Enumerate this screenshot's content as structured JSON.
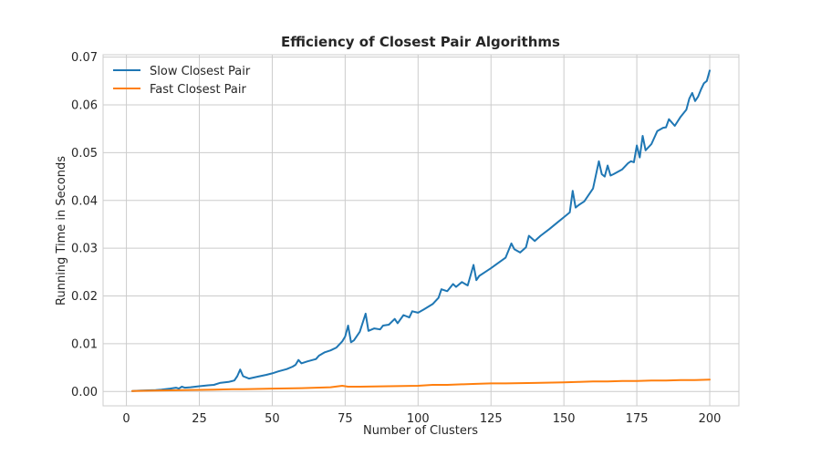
{
  "chart_data": {
    "type": "line",
    "title": "Efficiency of Closest Pair Algorithms",
    "xlabel": "Number of Clusters",
    "ylabel": "Running Time in Seconds",
    "xlim": [
      -8,
      210
    ],
    "ylim": [
      -0.003,
      0.0705
    ],
    "xticks": [
      "0",
      "25",
      "50",
      "75",
      "100",
      "125",
      "150",
      "175",
      "200"
    ],
    "xtick_values": [
      0,
      25,
      50,
      75,
      100,
      125,
      150,
      175,
      200
    ],
    "yticks": [
      "0.00",
      "0.01",
      "0.02",
      "0.03",
      "0.04",
      "0.05",
      "0.06",
      "0.07"
    ],
    "ytick_values": [
      0,
      0.01,
      0.02,
      0.03,
      0.04,
      0.05,
      0.06,
      0.07
    ],
    "grid": true,
    "legend_position": "top-left",
    "series": [
      {
        "name": "Slow Closest Pair",
        "color": "#1f77b4",
        "x": [
          2,
          5,
          10,
          12,
          15,
          17,
          18,
          19,
          20,
          22,
          25,
          28,
          30,
          32,
          35,
          37,
          38,
          39,
          40,
          42,
          45,
          48,
          50,
          52,
          55,
          57,
          58,
          59,
          60,
          62,
          65,
          66,
          68,
          70,
          72,
          74,
          75,
          76,
          77,
          78,
          80,
          82,
          83,
          85,
          87,
          88,
          90,
          92,
          93,
          95,
          97,
          98,
          100,
          102,
          105,
          107,
          108,
          110,
          112,
          113,
          115,
          117,
          119,
          120,
          121,
          123,
          125,
          127,
          130,
          132,
          133,
          135,
          137,
          138,
          140,
          142,
          145,
          148,
          150,
          152,
          153,
          154,
          155,
          157,
          160,
          162,
          163,
          164,
          165,
          166,
          167,
          170,
          172,
          173,
          174,
          175,
          176,
          177,
          178,
          180,
          182,
          184,
          185,
          186,
          188,
          190,
          192,
          193,
          194,
          195,
          196,
          197,
          198,
          199,
          200
        ],
        "values": [
          0.0001,
          0.0002,
          0.0003,
          0.0004,
          0.0006,
          0.0008,
          0.0006,
          0.001,
          0.0008,
          0.0009,
          0.0011,
          0.0013,
          0.0014,
          0.0018,
          0.002,
          0.0023,
          0.0032,
          0.0046,
          0.0032,
          0.0027,
          0.0031,
          0.0035,
          0.0038,
          0.0042,
          0.0047,
          0.0052,
          0.0056,
          0.0066,
          0.0059,
          0.0063,
          0.0068,
          0.0075,
          0.0082,
          0.0086,
          0.0092,
          0.0105,
          0.0115,
          0.0138,
          0.0103,
          0.0107,
          0.0125,
          0.0163,
          0.0127,
          0.0132,
          0.013,
          0.0138,
          0.014,
          0.0152,
          0.0143,
          0.016,
          0.0155,
          0.0168,
          0.0165,
          0.0172,
          0.0183,
          0.0196,
          0.0214,
          0.021,
          0.0225,
          0.0219,
          0.0229,
          0.0222,
          0.0265,
          0.0233,
          0.0242,
          0.025,
          0.0258,
          0.0267,
          0.028,
          0.031,
          0.0298,
          0.0291,
          0.0302,
          0.0326,
          0.0315,
          0.0326,
          0.034,
          0.0355,
          0.0365,
          0.0375,
          0.042,
          0.0385,
          0.039,
          0.0398,
          0.0425,
          0.0482,
          0.0455,
          0.045,
          0.0473,
          0.0452,
          0.0455,
          0.0465,
          0.0478,
          0.0482,
          0.048,
          0.0515,
          0.049,
          0.0535,
          0.0505,
          0.0518,
          0.0545,
          0.0552,
          0.0553,
          0.057,
          0.0556,
          0.0575,
          0.059,
          0.0613,
          0.0625,
          0.0608,
          0.0617,
          0.0632,
          0.0645,
          0.065,
          0.0672
        ]
      },
      {
        "name": "Fast Closest Pair",
        "color": "#ff7f0e",
        "x": [
          2,
          10,
          20,
          30,
          37,
          40,
          50,
          60,
          70,
          74,
          76,
          80,
          90,
          100,
          105,
          110,
          115,
          120,
          125,
          130,
          140,
          150,
          155,
          160,
          165,
          170,
          175,
          180,
          185,
          190,
          195,
          200
        ],
        "values": [
          0.0001,
          0.0002,
          0.0003,
          0.0004,
          0.0005,
          0.0005,
          0.0006,
          0.0007,
          0.0009,
          0.0012,
          0.001,
          0.001,
          0.0011,
          0.0012,
          0.0014,
          0.0014,
          0.0015,
          0.0016,
          0.0017,
          0.0017,
          0.0018,
          0.0019,
          0.002,
          0.0021,
          0.0021,
          0.0022,
          0.0022,
          0.0023,
          0.0023,
          0.0024,
          0.0024,
          0.0025
        ]
      }
    ]
  }
}
